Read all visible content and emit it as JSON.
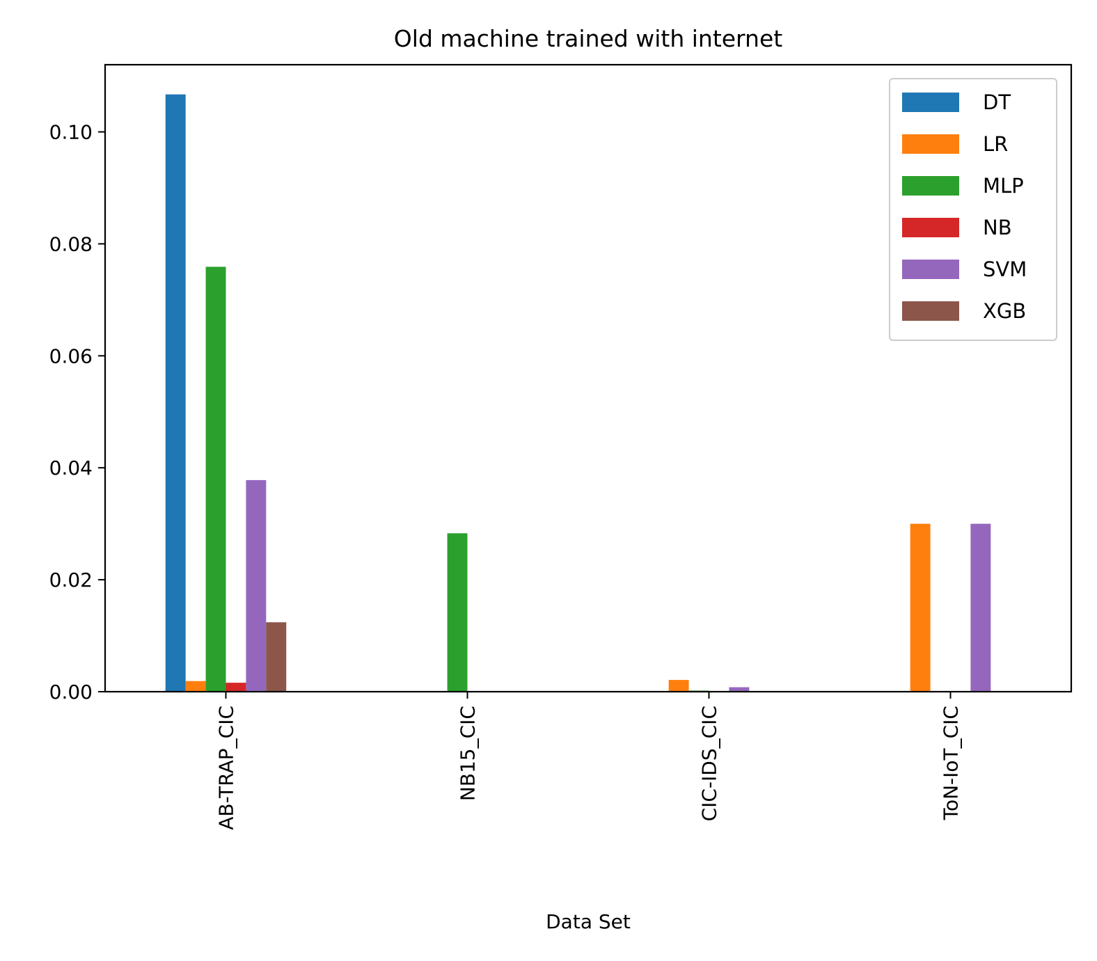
{
  "chart_data": {
    "type": "bar",
    "title": "Old machine trained with internet",
    "xlabel": "Data Set",
    "ylabel": "",
    "categories": [
      "AB-TRAP_CIC",
      "NB15_CIC",
      "CIC-IDS_CIC",
      "ToN-IoT_CIC"
    ],
    "ylim": [
      0,
      0.112
    ],
    "yticks": [
      "0.00",
      "0.02",
      "0.04",
      "0.06",
      "0.08",
      "0.10"
    ],
    "grid": false,
    "legend_position": "top-right",
    "series": [
      {
        "name": "DT",
        "color": "#1f77b4",
        "values": [
          0.1067,
          0.0,
          0.0,
          0.0
        ]
      },
      {
        "name": "LR",
        "color": "#ff7f0e",
        "values": [
          0.0019,
          0.0,
          0.0021,
          0.03
        ]
      },
      {
        "name": "MLP",
        "color": "#2ca02c",
        "values": [
          0.0759,
          0.0283,
          0.0002,
          0.0
        ]
      },
      {
        "name": "NB",
        "color": "#d62728",
        "values": [
          0.0016,
          0.0,
          0.0,
          0.0
        ]
      },
      {
        "name": "SVM",
        "color": "#9467bd",
        "values": [
          0.0378,
          0.0,
          0.0008,
          0.03
        ]
      },
      {
        "name": "XGB",
        "color": "#8c564b",
        "values": [
          0.0124,
          0.0,
          0.0,
          0.0
        ]
      }
    ]
  }
}
